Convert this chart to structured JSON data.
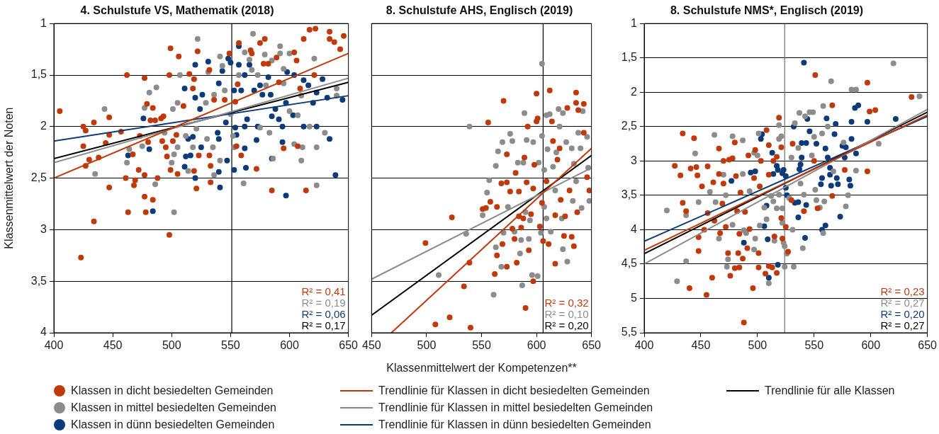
{
  "chart_data": [
    {
      "type": "scatter",
      "title": "4. Schulstufe VS, Mathematik (2018)",
      "ylabel": "Klassenmittelwert der Noten",
      "xlim": [
        400,
        650
      ],
      "xticks": [
        400,
        450,
        500,
        550,
        600,
        650
      ],
      "ylim": [
        4,
        1
      ],
      "yticks": [
        1,
        {
          "value": 1.5,
          "label": "1,5"
        },
        2,
        {
          "value": 2.5,
          "label": "2,5"
        },
        3,
        {
          "value": 3.5,
          "label": "3,5"
        },
        4
      ],
      "grid": "y",
      "marker": "circle",
      "legend": "bottom",
      "ref_lines": [
        {
          "axis": "x",
          "value": 551,
          "color": "#000000"
        }
      ],
      "annotations": [
        "R² = 0,41",
        "R² = 0,19",
        "R² = 0,06",
        "R² = 0,17"
      ],
      "series": [
        {
          "name": "Klassen in dicht besiedelten Gemeinden",
          "color": "#c0390b",
          "x": [
            405,
            425,
            427,
            425,
            427,
            430,
            434,
            438,
            434,
            423,
            444,
            447,
            447,
            447,
            457,
            462,
            461,
            463,
            467,
            469,
            468,
            472,
            473,
            477,
            477,
            477,
            478,
            479,
            480,
            482,
            484,
            484,
            486,
            488,
            491,
            492,
            493,
            495,
            496,
            498,
            499,
            499,
            498,
            501,
            504,
            505,
            506,
            510,
            515,
            519,
            518,
            519,
            521,
            522,
            523,
            532,
            533,
            533,
            532,
            536,
            545,
            549,
            554,
            557,
            556,
            555,
            559,
            567,
            568,
            572,
            575,
            579,
            578,
            582,
            585,
            589,
            591,
            595,
            604,
            606,
            609,
            607,
            612,
            614,
            617,
            622,
            621,
            634,
            634,
            638,
            643,
            646
          ],
          "values": [
            1.85,
            2.0,
            2.04,
            2.19,
            2.38,
            2.32,
            1.96,
            2.3,
            2.92,
            3.27,
            2.16,
            1.91,
            2.08,
            2.59,
            2.05,
            1.5,
            2.5,
            2.83,
            2.27,
            2.52,
            2.57,
            2.42,
            2.09,
            1.53,
            2.47,
            2.68,
            2.83,
            1.78,
            2.15,
            1.94,
            2.71,
            1.82,
            1.94,
            2.5,
            1.92,
            2.14,
            1.9,
            2.2,
            2.29,
            1.5,
            1.24,
            2.42,
            3.05,
            2.14,
            2.08,
            2.46,
            1.32,
            1.8,
            1.49,
            1.54,
            1.63,
            2.43,
            2.6,
            1.27,
            2.28,
            1.45,
            2.54,
            2.38,
            2.28,
            1.74,
            1.74,
            1.29,
            1.76,
            1.19,
            1.59,
            2.19,
            2.28,
            1.26,
            1.29,
            2.41,
            1.19,
            1.15,
            1.39,
            1.39,
            2.62,
            1.33,
            1.57,
            2.21,
            1.28,
            1.36,
            1.63,
            2.19,
            1.15,
            2.62,
            1.06,
            1.05,
            1.5,
            1.08,
            1.15,
            1.18,
            1.25,
            1.12
          ]
        },
        {
          "name": "Klassen in mittel besiedelten Gemeinden",
          "color": "#8c8c8c",
          "x": [
            443,
            435,
            462,
            464,
            475,
            477,
            481,
            487,
            486,
            494,
            501,
            502,
            500,
            502,
            505,
            507,
            505,
            512,
            514,
            518,
            521,
            522,
            529,
            530,
            531,
            535,
            536,
            536,
            541,
            541,
            543,
            545,
            550,
            552,
            553,
            557,
            562,
            561,
            569,
            566,
            568,
            573,
            575,
            579,
            580,
            583,
            585,
            586,
            592,
            592,
            595,
            595,
            600,
            600,
            604,
            607,
            610,
            611,
            610,
            617,
            621,
            623,
            623,
            630,
            640,
            640
          ],
          "values": [
            1.83,
            2.46,
            2.35,
            2.22,
            2.19,
            1.82,
            1.67,
            1.62,
            2.56,
            2.06,
            1.83,
            2.27,
            2.35,
            2.83,
            2.2,
            1.5,
            1.77,
            2.09,
            2.43,
            2.2,
            2.02,
            1.15,
            1.77,
            2.12,
            1.47,
            2.2,
            2.47,
            1.69,
            1.32,
            2.33,
            1.41,
            1.65,
            1.88,
            2.09,
            2.2,
            1.5,
            1.28,
            2.55,
            1.1,
            1.35,
            1.45,
            1.5,
            2.01,
            1.3,
            1.6,
            2.06,
            1.36,
            2.31,
            1.22,
            1.29,
            1.44,
            1.58,
            1.29,
            1.85,
            2.17,
            1.89,
            2.33,
            2.2,
            1.7,
            2.0,
            1.34,
            2.2,
            2.57,
            2.06,
            1.63,
            1.7
          ]
        },
        {
          "name": "Klassen in dünn besiedelten Gemeinden",
          "color": "#0d3a78",
          "x": [
            463,
            476,
            481,
            484,
            511,
            512,
            511,
            514,
            516,
            518,
            520,
            520,
            520,
            524,
            525,
            526,
            531,
            540,
            539,
            540,
            540,
            541,
            543,
            546,
            547,
            548,
            550,
            553,
            554,
            553,
            555,
            557,
            557,
            559,
            562,
            562,
            562,
            563,
            564,
            566,
            570,
            572,
            573,
            575,
            577,
            582,
            584,
            585,
            585,
            588,
            591,
            594,
            594,
            597,
            598,
            597,
            603,
            604,
            612,
            612,
            616,
            620,
            623,
            623,
            628,
            632,
            634,
            639,
            645
          ],
          "values": [
            2.28,
            1.92,
            2.22,
            2.82,
            1.63,
            2.29,
            2.39,
            2.12,
            2.28,
            2.1,
            1.4,
            2.5,
            1.72,
            1.83,
            2.2,
            1.69,
            1.37,
            1.58,
            2.06,
            2.12,
            2.44,
            2.59,
            1.46,
            1.96,
            2.33,
            1.34,
            1.38,
            1.65,
            2.01,
            2.42,
            2.08,
            1.22,
            1.4,
            1.65,
            1.5,
            2.0,
            2.21,
            2.4,
            1.93,
            1.4,
            1.65,
            2.13,
            2.0,
            1.6,
            1.69,
            1.52,
            1.69,
            1.9,
            2.31,
            1.83,
            1.93,
            2.0,
            2.15,
            2.67,
            1.47,
            1.77,
            1.89,
            1.5,
            2.0,
            1.55,
            1.6,
            1.77,
            2.0,
            1.67,
            1.54,
            1.72,
            2.12,
            2.47,
            1.74
          ]
        },
        {
          "type": "line",
          "name": "Trendlinie für Klassen in dicht besiedelten Gemeinden",
          "color": "#c0390b",
          "marker": "none",
          "x": [
            400,
            650
          ],
          "values": [
            2.5,
            1.29
          ]
        },
        {
          "type": "line",
          "name": "Trendlinie für Klassen in mittel besiedelten Gemeinden",
          "color": "#8c8c8c",
          "marker": "none",
          "x": [
            400,
            650
          ],
          "values": [
            2.35,
            1.53
          ]
        },
        {
          "type": "line",
          "name": "Trendlinie für Klassen in dünn besiedelten Gemeinden",
          "color": "#0d3a78",
          "marker": "none",
          "x": [
            400,
            650
          ],
          "values": [
            2.14,
            1.7
          ]
        },
        {
          "type": "line",
          "name": "Trendlinie für alle Klassen",
          "color": "#000000",
          "marker": "none",
          "x": [
            400,
            650
          ],
          "values": [
            2.31,
            1.57
          ]
        }
      ]
    },
    {
      "type": "scatter",
      "title": "8. Schulstufe AHS, Englisch (2019)",
      "xlabel": "Klassenmittelwert der Kompetenzen**",
      "xlim": [
        450,
        650
      ],
      "xticks": [
        450,
        500,
        550,
        600,
        650
      ],
      "ylim": [
        4,
        1
      ],
      "yticks": [
        1,
        1.5,
        2,
        2.5,
        3,
        3.5,
        4
      ],
      "tick_labels": "x",
      "grid": "y",
      "marker": "circle",
      "ref_lines": [
        {
          "axis": "x",
          "value": 606,
          "color": "#000000"
        }
      ],
      "annotations": [
        "R² = 0,32",
        "R² = 0,10",
        "R² = 0,20"
      ],
      "series": [
        {
          "color": "#c0390b",
          "x": [
            499,
            508,
            521,
            523,
            534,
            539,
            540,
            551,
            554,
            556,
            558,
            562,
            564,
            564,
            568,
            569,
            570,
            573,
            573,
            573,
            576,
            578,
            580,
            581,
            582,
            584,
            584,
            586,
            588,
            589,
            590,
            591,
            592,
            593,
            595,
            597,
            597,
            598,
            600,
            600,
            601,
            603,
            605,
            606,
            609,
            611,
            612,
            614,
            615,
            617,
            617,
            619,
            621,
            622,
            625,
            626,
            628,
            630,
            632,
            634,
            636,
            636,
            637,
            638,
            643,
            643,
            646,
            648
          ],
          "values": [
            3.13,
            3.92,
            3.85,
            2.88,
            3.55,
            3.32,
            3.95,
            2.8,
            2.79,
            1.96,
            2.73,
            3.43,
            3.25,
            2.78,
            2.55,
            3.14,
            1.75,
            3.36,
            2.54,
            2.27,
            2.63,
            2.99,
            3.09,
            2.45,
            3.32,
            2.63,
            2.87,
            2.98,
            2.89,
            2.3,
            3.76,
            2.54,
            2.0,
            3.2,
            2.85,
            2.6,
            3.5,
            2.37,
            1.68,
            1.95,
            1.92,
            2.97,
            2.74,
            3.11,
            2.53,
            3.14,
            1.65,
            1.95,
            2.14,
            2.86,
            3.33,
            2.32,
            2.21,
            2.71,
            3.06,
            2.87,
            1.82,
            2.62,
            3.07,
            3.16,
            1.77,
            1.67,
            2.83,
            1.84,
            2.06,
            1.78,
            2.49,
            2.62
          ]
        },
        {
          "color": "#8c8c8c",
          "x": [
            511,
            536,
            539,
            551,
            555,
            557,
            561,
            563,
            563,
            565,
            568,
            569,
            570,
            574,
            576,
            578,
            580,
            583,
            585,
            586,
            587,
            588,
            589,
            590,
            591,
            593,
            594,
            596,
            597,
            601,
            602,
            604,
            605,
            605,
            607,
            607,
            609,
            609,
            610,
            612,
            613,
            615,
            617,
            618,
            620,
            621,
            623,
            624,
            624,
            627,
            628,
            632,
            633,
            634,
            636,
            638,
            640,
            641,
            642,
            646,
            647,
            648
          ],
          "values": [
            3.44,
            3.04,
            2.0,
            2.86,
            2.64,
            2.52,
            3.63,
            2.38,
            3.17,
            2.24,
            3.36,
            2.15,
            3.03,
            2.78,
            2.07,
            2.14,
            3.02,
            2.35,
            3.23,
            3.1,
            3.54,
            2.35,
            1.87,
            2.83,
            2.13,
            3.09,
            2.91,
            3.44,
            2.15,
            3.45,
            2.35,
            3.03,
            1.39,
            2.09,
            2.42,
            2.78,
            2.89,
            1.89,
            2.22,
            1.88,
            3.02,
            2.39,
            2.62,
            2.25,
            1.83,
            2.0,
            2.89,
            1.87,
            3.19,
            2.15,
            3.31,
            2.21,
            2.72,
            2.36,
            2.53,
            2.06,
            2.21,
            2.79,
            1.85,
            2.1,
            2.4,
            2.72
          ]
        },
        {
          "type": "line",
          "color": "#c0390b",
          "marker": "none",
          "x": [
            468,
            650
          ],
          "values": [
            4,
            2.21
          ]
        },
        {
          "type": "line",
          "color": "#8c8c8c",
          "marker": "none",
          "x": [
            450,
            650
          ],
          "values": [
            3.48,
            2.4
          ]
        },
        {
          "type": "line",
          "color": "#000000",
          "marker": "none",
          "x": [
            450,
            650
          ],
          "values": [
            3.83,
            2.28
          ]
        }
      ]
    },
    {
      "type": "scatter",
      "title": "8. Schulstufe NMS*, Englisch (2019)",
      "xlim": [
        400,
        650
      ],
      "xticks": [
        400,
        450,
        500,
        550,
        600,
        650
      ],
      "ylim": [
        5.5,
        1
      ],
      "yticks": [
        1,
        {
          "value": 1.5,
          "label": "1,5"
        },
        2,
        {
          "value": 2.5,
          "label": "2,5"
        },
        3,
        {
          "value": 3.5,
          "label": "3,5"
        },
        4,
        {
          "value": 4.5,
          "label": "4,5"
        },
        5,
        {
          "value": 5.5,
          "label": "5,5"
        }
      ],
      "grid": "y",
      "marker": "circle",
      "ref_lines": [
        {
          "axis": "x",
          "value": 524,
          "color": "#6e6e6e"
        }
      ],
      "annotations": [
        "R² = 0,23",
        "R² = 0,27",
        "R² = 0,20",
        "R² = 0,27"
      ],
      "series": [
        {
          "color": "#c0390b",
          "x": [
            427,
            432,
            434,
            434,
            437,
            440,
            441,
            444,
            446,
            447,
            448,
            448,
            451,
            453,
            456,
            455,
            456,
            460,
            461,
            462,
            466,
            466,
            467,
            469,
            470,
            470,
            472,
            474,
            475,
            476,
            478,
            480,
            480,
            481,
            482,
            483,
            484,
            484,
            485,
            487,
            488,
            489,
            491,
            492,
            493,
            496,
            497,
            498,
            501,
            501,
            502,
            503,
            508,
            507,
            510,
            510,
            510,
            513,
            514,
            515,
            517,
            517,
            519,
            521,
            521,
            522,
            525,
            527,
            530,
            531,
            541,
            550,
            551,
            553,
            566,
            566,
            577,
            597,
            597,
            599,
            604,
            636
          ],
          "values": [
            3.07,
            3.21,
            2.6,
            3.61,
            3.73,
            4.85,
            3.11,
            2.67,
            3.09,
            3.21,
            4.11,
            4.31,
            3.37,
            4.0,
            3.08,
            4.95,
            3.76,
            4.7,
            3.31,
            3.87,
            2.82,
            3.19,
            4.05,
            3.62,
            3.0,
            3.33,
            3.96,
            4.34,
            2.98,
            4.67,
            2.96,
            2.73,
            4.56,
            3.22,
            3.73,
            4.34,
            4.55,
            4.06,
            3.46,
            4.42,
            5.35,
            3.74,
            4.27,
            2.92,
            3.99,
            4.85,
            3.25,
            2.84,
            4.34,
            4.55,
            3.37,
            3.0,
            2.55,
            4.64,
            2.77,
            4.53,
            3.2,
            4.55,
            3.0,
            4.1,
            4.63,
            2.94,
            2.37,
            2.8,
            3.83,
            4.13,
            3.96,
            4.32,
            3.57,
            2.75,
            3.73,
            3.0,
            1.75,
            3.69,
            2.19,
            3.51,
            3.13,
            1.86,
            3.15,
            2.28,
            2.26,
            2.07
          ]
        },
        {
          "color": "#8c8c8c",
          "x": [
            420,
            429,
            437,
            437,
            445,
            448,
            458,
            462,
            463,
            466,
            470,
            472,
            474,
            473,
            478,
            478,
            487,
            487,
            488,
            490,
            493,
            497,
            497,
            498,
            500,
            501,
            502,
            506,
            508,
            510,
            512,
            514,
            515,
            517,
            519,
            519,
            519,
            521,
            522,
            522,
            523,
            524,
            524,
            526,
            528,
            530,
            531,
            532,
            533,
            536,
            537,
            538,
            540,
            541,
            542,
            546,
            548,
            549,
            550,
            551,
            552,
            555,
            557,
            558,
            558,
            559,
            562,
            567,
            576,
            578,
            580,
            583,
            587,
            587,
            565,
            607,
            620,
            643
          ],
          "values": [
            3.72,
            4.75,
            4.46,
            3.79,
            2.89,
            3.6,
            3.45,
            2.62,
            3.6,
            4.13,
            3.2,
            3.5,
            4.43,
            4.54,
            2.64,
            3.93,
            2.7,
            3.19,
            4.01,
            4.05,
            3.44,
            4.29,
            2.88,
            4.13,
            2.92,
            2.6,
            3.94,
            3.68,
            3.85,
            4.78,
            3.51,
            3.59,
            4.16,
            3.69,
            2.68,
            2.48,
            3.49,
            2.64,
            3.9,
            3.69,
            4.19,
            4.54,
            4.24,
            4.35,
            3.54,
            2.95,
            4.0,
            4.54,
            2.45,
            2.81,
            2.3,
            3.33,
            4.27,
            3.49,
            2.35,
            2.29,
            2.92,
            2.29,
            2.65,
            3.42,
            3.57,
            3.68,
            2.6,
            2.2,
            4.05,
            3.59,
            2.5,
            3.15,
            2.73,
            3.66,
            3.5,
            1.96,
            1.96,
            3.14,
            1.84,
            2.75,
            1.58,
            2.06
          ]
        },
        {
          "color": "#0d3a78",
          "x": [
            477,
            488,
            494,
            498,
            503,
            504,
            506,
            508,
            509,
            510,
            513,
            514,
            517,
            518,
            518,
            522,
            523,
            525,
            525,
            526,
            532,
            533,
            536,
            536,
            537,
            538,
            539,
            539,
            541,
            542,
            543,
            543,
            544,
            546,
            552,
            556,
            557,
            557,
            560,
            561,
            560,
            562,
            564,
            564,
            565,
            568,
            569,
            570,
            571,
            573,
            575,
            577,
            578,
            581,
            582,
            583,
            583,
            587,
            586,
            589,
            597,
            622
          ],
          "values": [
            3.29,
            4.19,
            3.17,
            3.15,
            2.68,
            2.61,
            3.95,
            3.65,
            4.14,
            4.7,
            2.88,
            3.19,
            3.07,
            4.51,
            3.13,
            3.18,
            3.13,
            3.22,
            3.39,
            3.5,
            2.5,
            3.61,
            3.6,
            3.82,
            3.12,
            3.05,
            2.95,
            2.74,
            1.57,
            4.12,
            2.74,
            3.64,
            2.39,
            2.57,
            2.75,
            3.34,
            3.25,
            4.0,
            3.94,
            2.38,
            2.82,
            2.95,
            3.1,
            3.2,
            3.36,
            2.61,
            2.46,
            3.25,
            3.34,
            3.81,
            2.78,
            2.95,
            2.8,
            3.27,
            3.36,
            2.43,
            2.68,
            2.89,
            2.23,
            2.19,
            2.43,
            2.39
          ]
        },
        {
          "type": "line",
          "color": "#c0390b",
          "marker": "none",
          "x": [
            400,
            650
          ],
          "values": [
            4.3,
            2.33
          ]
        },
        {
          "type": "line",
          "color": "#8c8c8c",
          "marker": "none",
          "x": [
            400,
            650
          ],
          "values": [
            4.5,
            2.25
          ]
        },
        {
          "type": "line",
          "color": "#0d3a78",
          "marker": "none",
          "x": [
            400,
            650
          ],
          "values": [
            4.17,
            2.35
          ]
        },
        {
          "type": "line",
          "color": "#000000",
          "marker": "none",
          "x": [
            400,
            650
          ],
          "values": [
            4.35,
            2.29
          ]
        }
      ]
    }
  ]
}
